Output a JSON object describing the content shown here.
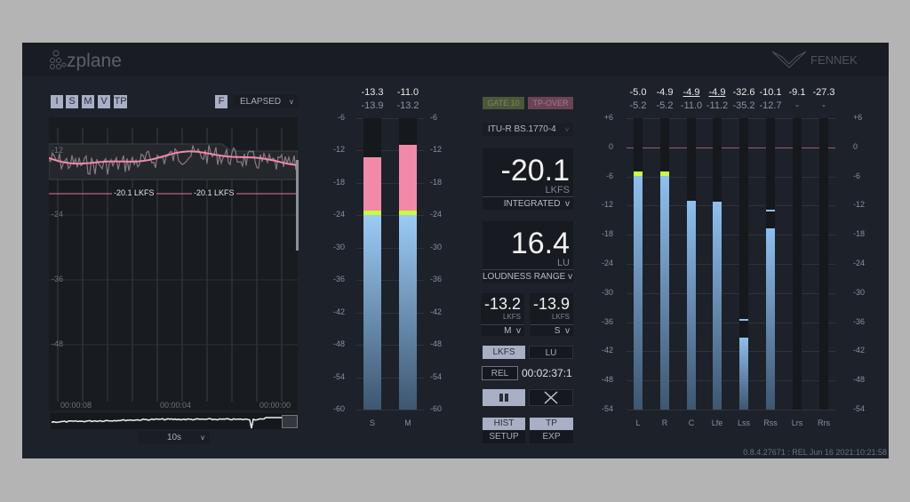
{
  "header": {
    "brand": "zplane",
    "product": "FENNEK"
  },
  "history": {
    "mode_buttons": [
      {
        "label": "I",
        "active": true
      },
      {
        "label": "S",
        "active": true
      },
      {
        "label": "M",
        "active": true
      },
      {
        "label": "V",
        "active": true
      },
      {
        "label": "TP",
        "active": true
      }
    ],
    "f_button": "F",
    "time_mode": "ELAPSED",
    "y_ticks": [
      "-12",
      "-24",
      "-36",
      "-48"
    ],
    "target_markers": [
      "-20.1 LKFS",
      "-20.1 LKFS"
    ],
    "time_ticks": [
      "00:00:08",
      "00:00:04",
      "00:00:00"
    ],
    "zoom": "10s"
  },
  "sm_meters": {
    "scale": [
      "-6",
      "-12",
      "-18",
      "-24",
      "-30",
      "-36",
      "-42",
      "-48",
      "-54",
      "-60"
    ],
    "range": [
      -60,
      -6
    ],
    "channels": [
      {
        "label": "S",
        "value": "-13.3",
        "max": "-13.9",
        "level": -13.3
      },
      {
        "label": "M",
        "value": "-11.0",
        "max": "-13.2",
        "level": -11.0
      }
    ]
  },
  "center": {
    "gate": "GATE 10",
    "tp_over": "TP-OVER",
    "standard": "ITU-R BS.1770-4",
    "integrated": {
      "value": "-20.1",
      "unit": "LKFS",
      "label": "INTEGRATED"
    },
    "lra": {
      "value": "16.4",
      "unit": "LU",
      "label": "LOUDNESS RANGE"
    },
    "m": {
      "value": "-13.2",
      "unit": "LKFS",
      "label": "M"
    },
    "s": {
      "value": "-13.9",
      "unit": "LKFS",
      "label": "S"
    },
    "unit_lkfs": "LKFS",
    "unit_lu": "LU",
    "rel": "REL",
    "time": "00:02:37:1",
    "hist": "HIST",
    "tp": "TP",
    "setup": "SETUP",
    "exp": "EXP"
  },
  "tp_meters": {
    "scale": [
      "+6",
      "0",
      "-6",
      "-12",
      "-18",
      "-24",
      "-30",
      "-36",
      "-42",
      "-48",
      "-54"
    ],
    "range": [
      -54,
      6
    ],
    "channels": [
      {
        "label": "L",
        "value": "-5.0",
        "max": "-5.2",
        "level": -5.0
      },
      {
        "label": "R",
        "value": "-4.9",
        "max": "-5.2",
        "level": -4.9
      },
      {
        "label": "C",
        "value": "-4.9",
        "max": "-11.0",
        "level": -11.0,
        "underline": true
      },
      {
        "label": "Lfe",
        "value": "-4.9",
        "max": "-11.2",
        "level": -11.2,
        "underline": true
      },
      {
        "label": "Lss",
        "value": "-32.6",
        "max": "-35.2",
        "level": -39.1,
        "peak": -35.3
      },
      {
        "label": "Rss",
        "value": "-10.1",
        "max": "-12.7",
        "level": -16.6,
        "peak": -12.8
      },
      {
        "label": "Lrs",
        "value": "-9.1",
        "max": "-",
        "level": null
      },
      {
        "label": "Rrs",
        "value": "-27.3",
        "max": "-",
        "level": null
      }
    ]
  },
  "footer": {
    "version": "0.8.4.27671 : REL Jun 16 2021:10:21:58"
  },
  "colors": {
    "panel": "#1d2129",
    "pink": "#f08aa8",
    "green": "#c8ff3a",
    "blue": "#8fbfee",
    "button": "#a9afc4"
  }
}
